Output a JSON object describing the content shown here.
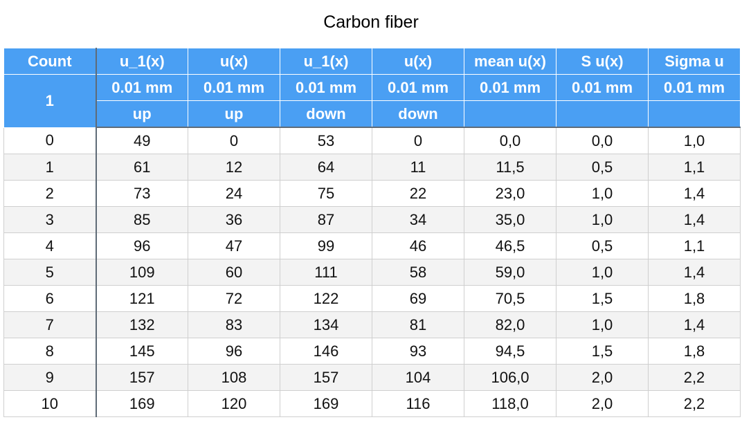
{
  "title": "Carbon fiber",
  "headers": {
    "row1": [
      "Count",
      "u_1(x)",
      "u(x)",
      "u_1(x)",
      "u(x)",
      "mean u(x)",
      "S u(x)",
      "Sigma u"
    ],
    "count_sub": "1",
    "row2": [
      "0.01 mm",
      "0.01 mm",
      "0.01 mm",
      "0.01 mm",
      "0.01 mm",
      "0.01 mm",
      "0.01 mm"
    ],
    "row3": [
      "up",
      "up",
      "down",
      "down",
      "",
      "",
      ""
    ]
  },
  "rows": [
    [
      "0",
      "49",
      "0",
      "53",
      "0",
      "0,0",
      "0,0",
      "1,0"
    ],
    [
      "1",
      "61",
      "12",
      "64",
      "11",
      "11,5",
      "0,5",
      "1,1"
    ],
    [
      "2",
      "73",
      "24",
      "75",
      "22",
      "23,0",
      "1,0",
      "1,4"
    ],
    [
      "3",
      "85",
      "36",
      "87",
      "34",
      "35,0",
      "1,0",
      "1,4"
    ],
    [
      "4",
      "96",
      "47",
      "99",
      "46",
      "46,5",
      "0,5",
      "1,1"
    ],
    [
      "5",
      "109",
      "60",
      "111",
      "58",
      "59,0",
      "1,0",
      "1,4"
    ],
    [
      "6",
      "121",
      "72",
      "122",
      "69",
      "70,5",
      "1,5",
      "1,8"
    ],
    [
      "7",
      "132",
      "83",
      "134",
      "81",
      "82,0",
      "1,0",
      "1,4"
    ],
    [
      "8",
      "145",
      "96",
      "146",
      "93",
      "94,5",
      "1,5",
      "1,8"
    ],
    [
      "9",
      "157",
      "108",
      "157",
      "104",
      "106,0",
      "2,0",
      "2,2"
    ],
    [
      "10",
      "169",
      "120",
      "169",
      "116",
      "118,0",
      "2,0",
      "2,2"
    ]
  ]
}
